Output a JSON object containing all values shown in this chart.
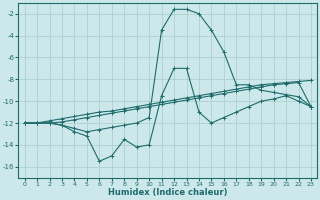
{
  "xlabel": "Humidex (Indice chaleur)",
  "bg_color": "#cde8ea",
  "grid_color": "#a8cccc",
  "line_color": "#1e6b6b",
  "xlim": [
    -0.5,
    23.5
  ],
  "ylim": [
    -17,
    -1
  ],
  "xticks": [
    0,
    1,
    2,
    3,
    4,
    5,
    6,
    7,
    8,
    9,
    10,
    11,
    12,
    13,
    14,
    15,
    16,
    17,
    18,
    19,
    20,
    21,
    22,
    23
  ],
  "yticks": [
    -16,
    -14,
    -12,
    -10,
    -8,
    -6,
    -4,
    -2
  ],
  "line_peak": {
    "x": [
      0,
      1,
      2,
      3,
      4,
      5,
      6,
      7,
      8,
      9,
      10,
      11,
      12,
      13,
      14,
      15,
      16,
      17,
      18,
      19,
      20,
      21,
      22,
      23
    ],
    "y": [
      -12,
      -12,
      -12,
      -12.2,
      -12.5,
      -12.8,
      -12.6,
      -12.4,
      -12.2,
      -12.0,
      -11.5,
      -3.5,
      -1.6,
      -1.6,
      -2.0,
      -3.5,
      -5.5,
      -8.5,
      -8.5,
      -9.0,
      -9.2,
      -9.4,
      -9.6,
      -10.5
    ]
  },
  "line_wavy": {
    "x": [
      0,
      1,
      2,
      3,
      4,
      5,
      6,
      7,
      8,
      9,
      10,
      11,
      12,
      13,
      14,
      15,
      16,
      17,
      18,
      19,
      20,
      21,
      22,
      23
    ],
    "y": [
      -12,
      -12,
      -12,
      -12.2,
      -12.8,
      -13.2,
      -15.5,
      -15.0,
      -13.5,
      -14.2,
      -14.0,
      -9.5,
      -7.0,
      -7.0,
      -11.0,
      -12.0,
      -11.5,
      -11.0,
      -10.5,
      -10.0,
      -9.8,
      -9.5,
      -10.0,
      -10.5
    ]
  },
  "line_flat1": {
    "x": [
      0,
      1,
      2,
      3,
      4,
      5,
      6,
      7,
      8,
      9,
      10,
      11,
      12,
      13,
      14,
      15,
      16,
      17,
      18,
      19,
      20,
      21,
      22,
      23
    ],
    "y": [
      -12,
      -12,
      -11.8,
      -11.6,
      -11.4,
      -11.2,
      -11.0,
      -10.9,
      -10.7,
      -10.5,
      -10.3,
      -10.1,
      -9.9,
      -9.7,
      -9.5,
      -9.3,
      -9.1,
      -8.9,
      -8.7,
      -8.5,
      -8.4,
      -8.3,
      -8.2,
      -8.1
    ]
  },
  "line_flat2": {
    "x": [
      0,
      1,
      2,
      3,
      4,
      5,
      6,
      7,
      8,
      9,
      10,
      11,
      12,
      13,
      14,
      15,
      16,
      17,
      18,
      19,
      20,
      21,
      22,
      23
    ],
    "y": [
      -12,
      -12,
      -12,
      -11.9,
      -11.7,
      -11.5,
      -11.3,
      -11.1,
      -10.9,
      -10.7,
      -10.5,
      -10.3,
      -10.1,
      -9.9,
      -9.7,
      -9.5,
      -9.3,
      -9.1,
      -8.9,
      -8.7,
      -8.5,
      -8.4,
      -8.3,
      -10.5
    ]
  }
}
